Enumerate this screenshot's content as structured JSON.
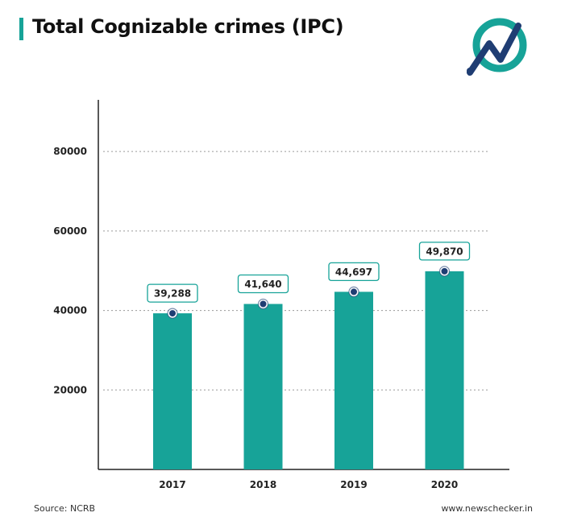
{
  "header": {
    "title": "Total Cognizable crimes (IPC)"
  },
  "logo": {
    "icon": "newschecker-logo-icon",
    "ring_color": "#17a398",
    "mark_color": "#1f3d73"
  },
  "footer": {
    "source": "Source: NCRB",
    "site": "www.newschecker.in"
  },
  "colors": {
    "bar": "#17a398",
    "dot": "#1f3d73",
    "grid": "#9a9a9a",
    "axis": "#222222"
  },
  "chart_data": {
    "type": "bar",
    "title": "Total Cognizable crimes (IPC)",
    "xlabel": "",
    "ylabel": "",
    "categories": [
      "2017",
      "2018",
      "2019",
      "2020"
    ],
    "values": [
      39288,
      41640,
      44697,
      49870
    ],
    "value_labels": [
      "39,288",
      "41,640",
      "44,697",
      "49,870"
    ],
    "ylim": [
      0,
      93000
    ],
    "yticks": [
      20000,
      40000,
      60000,
      80000
    ],
    "ytick_labels": [
      "20000",
      "40000",
      "60000",
      "80000"
    ],
    "grid": true
  }
}
